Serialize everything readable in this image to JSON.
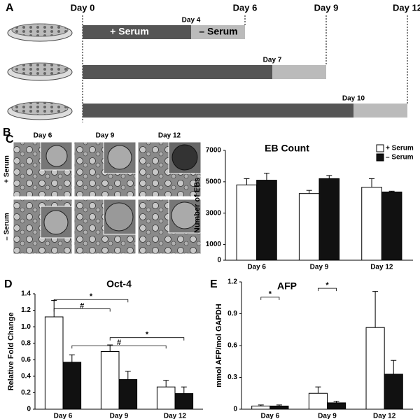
{
  "timeline": {
    "label": "A",
    "days": [
      "Day 0",
      "Day 6",
      "Day 9",
      "Day 12"
    ],
    "switch_days": [
      "Day 4",
      "Day 7",
      "Day 10"
    ],
    "phases": [
      "+ Serum",
      "– Serum"
    ]
  },
  "micrographs": {
    "label": "B",
    "columns": [
      "Day 6",
      "Day 9",
      "Day 12"
    ],
    "rows": [
      "+ Serum",
      "– Serum"
    ]
  },
  "chart_data": [
    {
      "type": "bar",
      "label": "C",
      "title": "EB Count",
      "ylabel": "Number of EBs",
      "categories": [
        "Day 6",
        "Day 9",
        "Day 12"
      ],
      "series": [
        {
          "name": "+ Serum",
          "color": "#ffffff",
          "values": [
            4800,
            4250,
            4650
          ],
          "errors": [
            400,
            200,
            550
          ]
        },
        {
          "name": "– Serum",
          "color": "#111111",
          "values": [
            5100,
            5200,
            4350
          ],
          "errors": [
            450,
            200,
            50
          ]
        }
      ],
      "ylim": [
        0,
        7000
      ],
      "yticks": [
        0,
        1000,
        3000,
        5000,
        7000
      ],
      "legend": "top-right"
    },
    {
      "type": "bar",
      "label": "D",
      "title": "Oct-4",
      "ylabel": "Relative Fold Change",
      "categories": [
        "Day 6",
        "Day 9",
        "Day 12"
      ],
      "series": [
        {
          "name": "+ Serum",
          "color": "#ffffff",
          "values": [
            1.12,
            0.7,
            0.27
          ],
          "errors": [
            0.2,
            0.08,
            0.08
          ]
        },
        {
          "name": "– Serum",
          "color": "#111111",
          "values": [
            0.57,
            0.36,
            0.19
          ],
          "errors": [
            0.09,
            0.1,
            0.08
          ]
        }
      ],
      "ylim": [
        0,
        1.4
      ],
      "yticks": [
        0,
        0.2,
        0.4,
        0.6,
        0.8,
        {
          "value": 1,
          "label": "1.0"
        },
        1.2,
        1.4
      ],
      "annotations": [
        "*",
        "#",
        "*",
        "#"
      ]
    },
    {
      "type": "bar",
      "label": "E",
      "title": "AFP",
      "ylabel": "mmol AFP/mol GAPDH",
      "categories": [
        "Day 6",
        "Day 9",
        "Day 12"
      ],
      "series": [
        {
          "name": "+ Serum",
          "color": "#ffffff",
          "values": [
            0.03,
            0.15,
            0.77
          ],
          "errors": [
            0.01,
            0.06,
            0.34
          ]
        },
        {
          "name": "– Serum",
          "color": "#111111",
          "values": [
            0.03,
            0.06,
            0.33
          ],
          "errors": [
            0.01,
            0.015,
            0.13
          ]
        }
      ],
      "ylim": [
        0,
        1.2
      ],
      "yticks": [
        0,
        0.3,
        0.6,
        0.9,
        1.2
      ],
      "annotations": [
        "*",
        "*"
      ]
    }
  ]
}
